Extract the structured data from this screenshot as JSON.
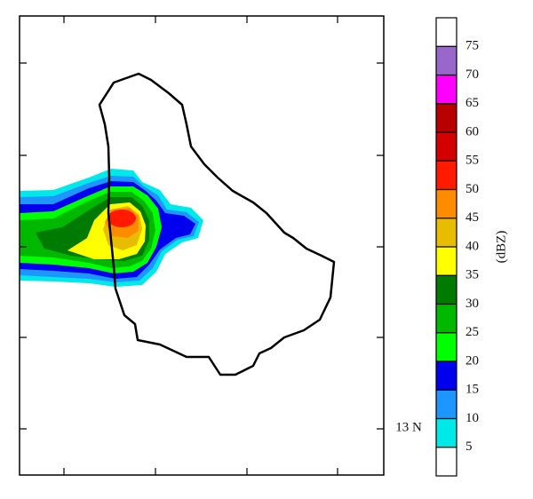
{
  "colorbar": {
    "label": "(dBZ)",
    "ticks": [
      5,
      10,
      15,
      20,
      25,
      30,
      35,
      40,
      45,
      50,
      55,
      60,
      65,
      70,
      75
    ],
    "colors": [
      "#ffffff",
      "#00e8e8",
      "#1e96ff",
      "#0000ee",
      "#00ff00",
      "#00b800",
      "#007a00",
      "#ffff00",
      "#e8bc00",
      "#ff8c00",
      "#ff1a00",
      "#d40000",
      "#b80000",
      "#ff00ff",
      "#9966cc",
      "#ffffff"
    ]
  },
  "map": {
    "lat_label": "13 N"
  }
}
